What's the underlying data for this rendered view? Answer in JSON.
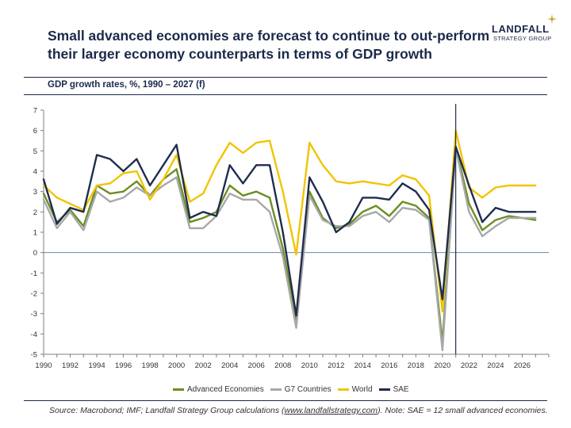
{
  "header": {
    "title": "Small advanced economies are forecast to continue to out-perform their larger economy counterparts in terms of GDP growth",
    "subtitle": "GDP growth rates, %, 1990 – 2027 (f)"
  },
  "logo": {
    "name": "LANDFALL",
    "tagline": "STRATEGY GROUP"
  },
  "footer": {
    "source_prefix": "Source: Macrobond; IMF; Landfall Strategy Group calculations (",
    "source_link": "www.landfallstrategy.com",
    "source_suffix": "). Note: SAE = 12 small advanced economies."
  },
  "chart_data": {
    "type": "line",
    "title": "GDP growth rates, %, 1990 – 2027 (f)",
    "xlabel": "",
    "ylabel": "",
    "xlim": [
      1990,
      2028
    ],
    "ylim": [
      -5,
      7
    ],
    "x_ticks": [
      1990,
      1992,
      1994,
      1996,
      1998,
      2000,
      2002,
      2004,
      2006,
      2008,
      2010,
      2012,
      2014,
      2016,
      2018,
      2020,
      2022,
      2024,
      2026
    ],
    "y_ticks": [
      -5,
      -4,
      -3,
      -2,
      -1,
      0,
      1,
      2,
      3,
      4,
      5,
      6,
      7
    ],
    "grid": false,
    "forecast_divider_x": 2021,
    "legend_position": "bottom",
    "x": [
      1990,
      1991,
      1992,
      1993,
      1994,
      1995,
      1996,
      1997,
      1998,
      1999,
      2000,
      2001,
      2002,
      2003,
      2004,
      2005,
      2006,
      2007,
      2008,
      2009,
      2010,
      2011,
      2012,
      2013,
      2014,
      2015,
      2016,
      2017,
      2018,
      2019,
      2020,
      2021,
      2022,
      2023,
      2024,
      2025,
      2026,
      2027
    ],
    "series": [
      {
        "name": "Advanced Economies",
        "color": "#6b8e23",
        "values": [
          2.9,
          1.5,
          2.1,
          1.3,
          3.3,
          2.9,
          3.0,
          3.5,
          2.8,
          3.6,
          4.1,
          1.5,
          1.7,
          2.0,
          3.3,
          2.8,
          3.0,
          2.7,
          0.2,
          -3.4,
          3.0,
          1.7,
          1.2,
          1.4,
          2.0,
          2.3,
          1.8,
          2.5,
          2.3,
          1.7,
          -4.4,
          5.2,
          2.4,
          1.1,
          1.6,
          1.8,
          1.7,
          1.6
        ]
      },
      {
        "name": "G7 Countries",
        "color": "#a8a8a8",
        "values": [
          2.6,
          1.2,
          2.0,
          1.1,
          3.0,
          2.5,
          2.7,
          3.2,
          2.8,
          3.3,
          3.7,
          1.2,
          1.2,
          1.8,
          2.9,
          2.6,
          2.6,
          2.0,
          -0.2,
          -3.7,
          2.8,
          1.6,
          1.3,
          1.3,
          1.8,
          2.0,
          1.5,
          2.2,
          2.1,
          1.6,
          -4.8,
          5.1,
          2.0,
          0.8,
          1.3,
          1.7,
          1.7,
          1.7
        ]
      },
      {
        "name": "World",
        "color": "#f2c400",
        "values": [
          3.3,
          2.7,
          2.4,
          2.1,
          3.3,
          3.4,
          3.9,
          4.0,
          2.6,
          3.6,
          4.8,
          2.5,
          2.9,
          4.3,
          5.4,
          4.9,
          5.4,
          5.5,
          3.0,
          -0.1,
          5.4,
          4.3,
          3.5,
          3.4,
          3.5,
          3.4,
          3.3,
          3.8,
          3.6,
          2.8,
          -2.9,
          6.0,
          3.2,
          2.7,
          3.2,
          3.3,
          3.3,
          3.3
        ]
      },
      {
        "name": "SAE",
        "color": "#1f2d4e",
        "values": [
          3.6,
          1.4,
          2.2,
          2.0,
          4.8,
          4.6,
          4.0,
          4.6,
          3.3,
          4.3,
          5.3,
          1.7,
          2.0,
          1.8,
          4.3,
          3.4,
          4.3,
          4.3,
          1.0,
          -3.1,
          3.7,
          2.5,
          1.0,
          1.5,
          2.7,
          2.7,
          2.6,
          3.4,
          3.0,
          2.1,
          -2.3,
          5.2,
          3.3,
          1.5,
          2.2,
          2.0,
          2.0,
          2.0
        ]
      }
    ]
  }
}
